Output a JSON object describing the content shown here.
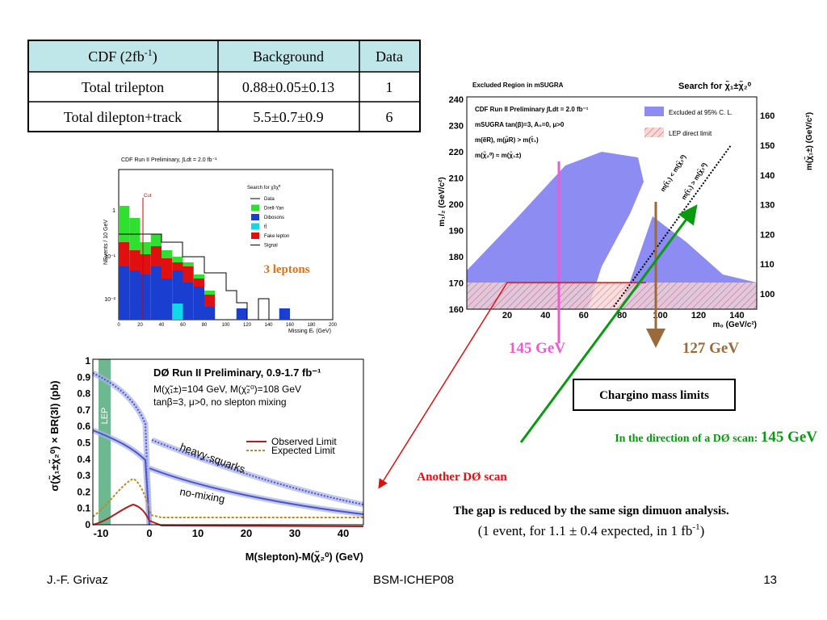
{
  "table": {
    "header": [
      {
        "text": "CDF (2fb",
        "sup": "-1",
        "tail": ")"
      },
      "Background",
      "Data"
    ],
    "rows": [
      [
        "Total trilepton",
        "0.88±0.05±0.13",
        "1"
      ],
      [
        "Total dilepton+track",
        "5.5±0.7±0.9",
        "6"
      ]
    ]
  },
  "plot_cdf": {
    "title": "CDF Run II Preliminary, ∫Ldt = 2.0 fb⁻¹",
    "y_label": "NEvents / 10 GeV",
    "x_label": "Missing Eₜ (GeV)",
    "x_ticks": [
      "0",
      "20",
      "40",
      "60",
      "80",
      "100",
      "120",
      "140",
      "160",
      "180",
      "200"
    ],
    "y_ticks": [
      "1",
      "10⁻¹",
      "10⁻²"
    ],
    "cut": "Cut",
    "legend_title": "Search for χ̃±χ̃⁰",
    "legend": [
      "Data",
      "Drell-Yan",
      "Dibosons",
      "tt̄",
      "Fake lepton",
      "Signal"
    ]
  },
  "label_3_leptons": "3 leptons",
  "plot_msugra": {
    "title": "Excluded Region in mSUGRA",
    "title_right": "Search for χ̃₁±χ̃₂⁰",
    "y_label": "m₁/₂ (GeV/c²)",
    "x_label": "m₀ (GeV/c²)",
    "y2_label": "m(χ̃₁±) (GeV/c²)",
    "x_ticks": [
      "20",
      "40",
      "60",
      "80",
      "100",
      "120",
      "140"
    ],
    "y_ticks": [
      "160",
      "170",
      "180",
      "190",
      "200",
      "210",
      "220",
      "230",
      "240"
    ],
    "y2_ticks": [
      "100",
      "110",
      "120",
      "130",
      "140",
      "150",
      "160"
    ],
    "notes": [
      "CDF Run II Preliminary ∫Ldt = 2.0 fb⁻¹",
      "mSUGRA tan(β)=3, A₀=0, μ>0",
      "m(ẽR), m(μ̃R) > m(τ̃₁)",
      "m(χ̃₂⁰) ≈ m(χ̃₁±)"
    ],
    "legend": [
      "Excluded at 95% C. L.",
      "LEP direct limit"
    ],
    "diag": [
      "m(τ̃₁) < m(χ̃₂⁰)",
      "m(τ̃₁) > m(χ̃₂⁰)"
    ]
  },
  "plot_d0": {
    "title": "DØ Run II Preliminary, 0.9-1.7 fb⁻¹",
    "notes": [
      "M(χ̃₁±)=104 GeV, M(χ̃₂⁰)=108 GeV",
      "tanβ=3, μ>0, no slepton mixing"
    ],
    "lep": "LEP",
    "legend": [
      "Observed Limit",
      "Expected Limit"
    ],
    "curves": [
      "heavy-squarks",
      "no-mixing"
    ],
    "y_label": "σ(χ̃₁±χ̃₂⁰) × BR(3l) (pb)",
    "x_label": "M(slepton)-M(χ̃₂⁰) (GeV)",
    "x_ticks": [
      "-10",
      "0",
      "10",
      "20",
      "30",
      "40"
    ],
    "y_ticks": [
      "0",
      "0.1",
      "0.2",
      "0.3",
      "0.4",
      "0.5",
      "0.6",
      "0.7",
      "0.8",
      "0.9",
      "1"
    ]
  },
  "annotations": {
    "gev_145": "145 GeV",
    "gev_127": "127 GeV",
    "chargino_box": "Chargino mass limits",
    "direction": "In the direction of a DØ scan: ",
    "direction_value": "145 GeV",
    "another_scan": "Another DØ scan",
    "gap": "The gap is reduced by the same sign dimuon analysis.",
    "gap_detail": {
      "text": "(1 event, for 1.1 ± 0.4 expected, in 1 fb",
      "sup": "-1",
      "tail": ")"
    }
  },
  "footer": {
    "author": "J.-F. Grivaz",
    "event": "BSM-ICHEP08",
    "page": "13"
  }
}
